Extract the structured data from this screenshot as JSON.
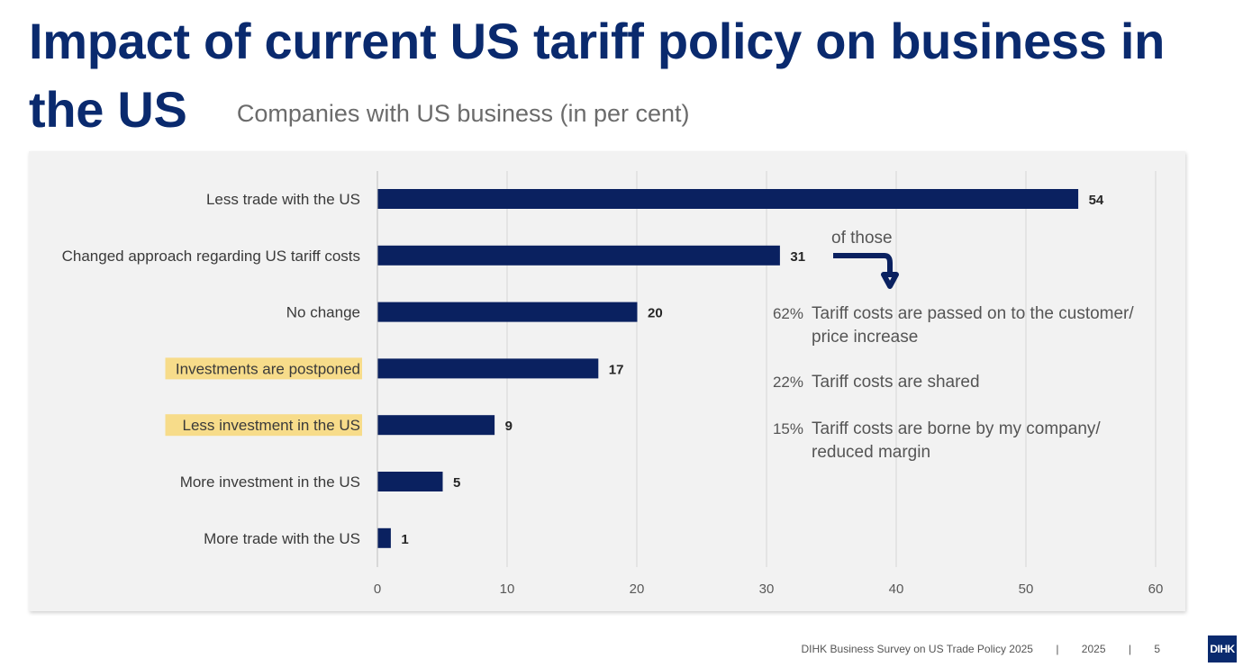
{
  "title": "Impact of current US tariff policy on business in the US",
  "subtitle": "Companies with US business (in per cent)",
  "chart_data": {
    "type": "bar",
    "orientation": "horizontal",
    "categories": [
      "Less trade with the US",
      "Changed approach regarding US tariff costs",
      "No change",
      "Investments are postponed",
      "Less investment in the US",
      "More investment in the US",
      "More trade with the US"
    ],
    "values": [
      54,
      31,
      20,
      17,
      9,
      5,
      1
    ],
    "highlighted": [
      false,
      false,
      false,
      true,
      true,
      false,
      false
    ],
    "xlim": [
      0,
      60
    ],
    "xticks": [
      0,
      10,
      20,
      30,
      40,
      50,
      60
    ],
    "grid": "vertical",
    "bar_color": "#0a2160",
    "highlight_color": "#f7dc8a",
    "annotation": {
      "heading": "of those",
      "items": [
        {
          "pct": "62%",
          "lines": [
            "Tariff costs are passed on to the customer/",
            "price increase"
          ]
        },
        {
          "pct": "22%",
          "lines": [
            "Tariff costs are shared"
          ]
        },
        {
          "pct": "15%",
          "lines": [
            "Tariff costs are borne by my company/",
            "reduced margin"
          ]
        }
      ]
    }
  },
  "footer": {
    "source": "DIHK Business Survey on US Trade Policy 2025",
    "separator": "|",
    "year": "2025",
    "page": "5",
    "logo": "DIHK"
  }
}
